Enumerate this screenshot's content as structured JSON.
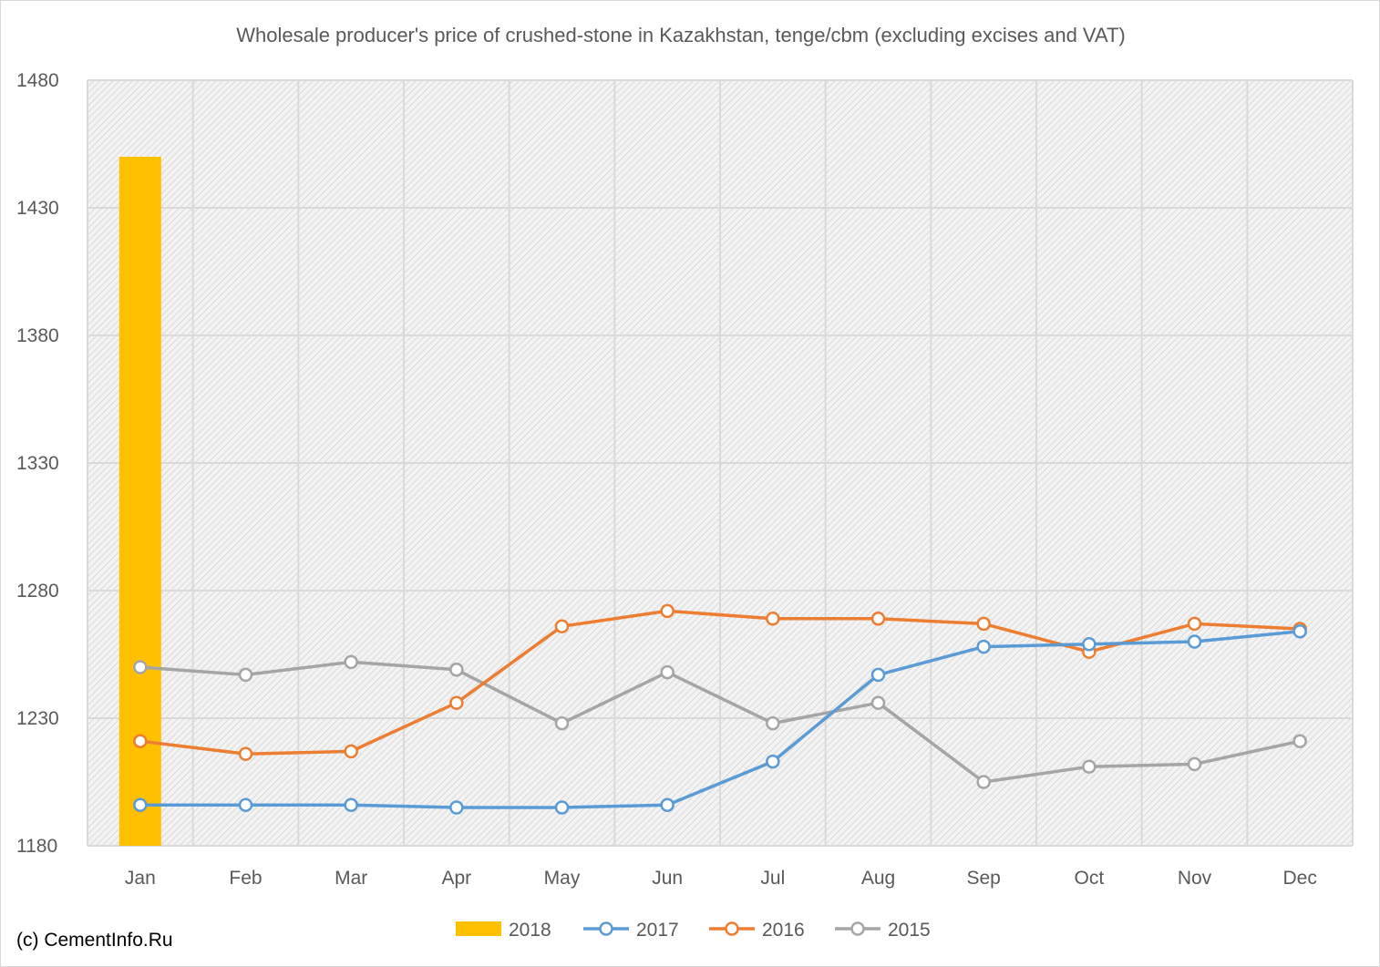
{
  "chart_data": {
    "type": "bar+line",
    "title": "Wholesale producer's price of crushed-stone in Kazakhstan, tenge/cbm (excluding excises and VAT)",
    "categories": [
      "Jan",
      "Feb",
      "Mar",
      "Apr",
      "May",
      "Jun",
      "Jul",
      "Aug",
      "Sep",
      "Oct",
      "Nov",
      "Dec"
    ],
    "ylim": [
      1180,
      1480
    ],
    "yticks": [
      1180,
      1230,
      1280,
      1330,
      1380,
      1430,
      1480
    ],
    "grid": true,
    "legend_position": "bottom",
    "series": [
      {
        "name": "2018",
        "type": "bar",
        "color": "#FFC000",
        "values": [
          1450,
          null,
          null,
          null,
          null,
          null,
          null,
          null,
          null,
          null,
          null,
          null
        ]
      },
      {
        "name": "2017",
        "type": "line",
        "color": "#5B9BD5",
        "values": [
          1196,
          1196,
          1196,
          1195,
          1195,
          1196,
          1213,
          1247,
          1258,
          1259,
          1260,
          1264
        ]
      },
      {
        "name": "2016",
        "type": "line",
        "color": "#ED7D31",
        "values": [
          1221,
          1216,
          1217,
          1236,
          1266,
          1272,
          1269,
          1269,
          1267,
          1256,
          1267,
          1265
        ]
      },
      {
        "name": "2015",
        "type": "line",
        "color": "#A5A5A5",
        "values": [
          1250,
          1247,
          1252,
          1249,
          1228,
          1248,
          1228,
          1236,
          1205,
          1211,
          1212,
          1221
        ]
      }
    ]
  },
  "footer": {
    "credit": "(c) CementInfo.Ru"
  }
}
